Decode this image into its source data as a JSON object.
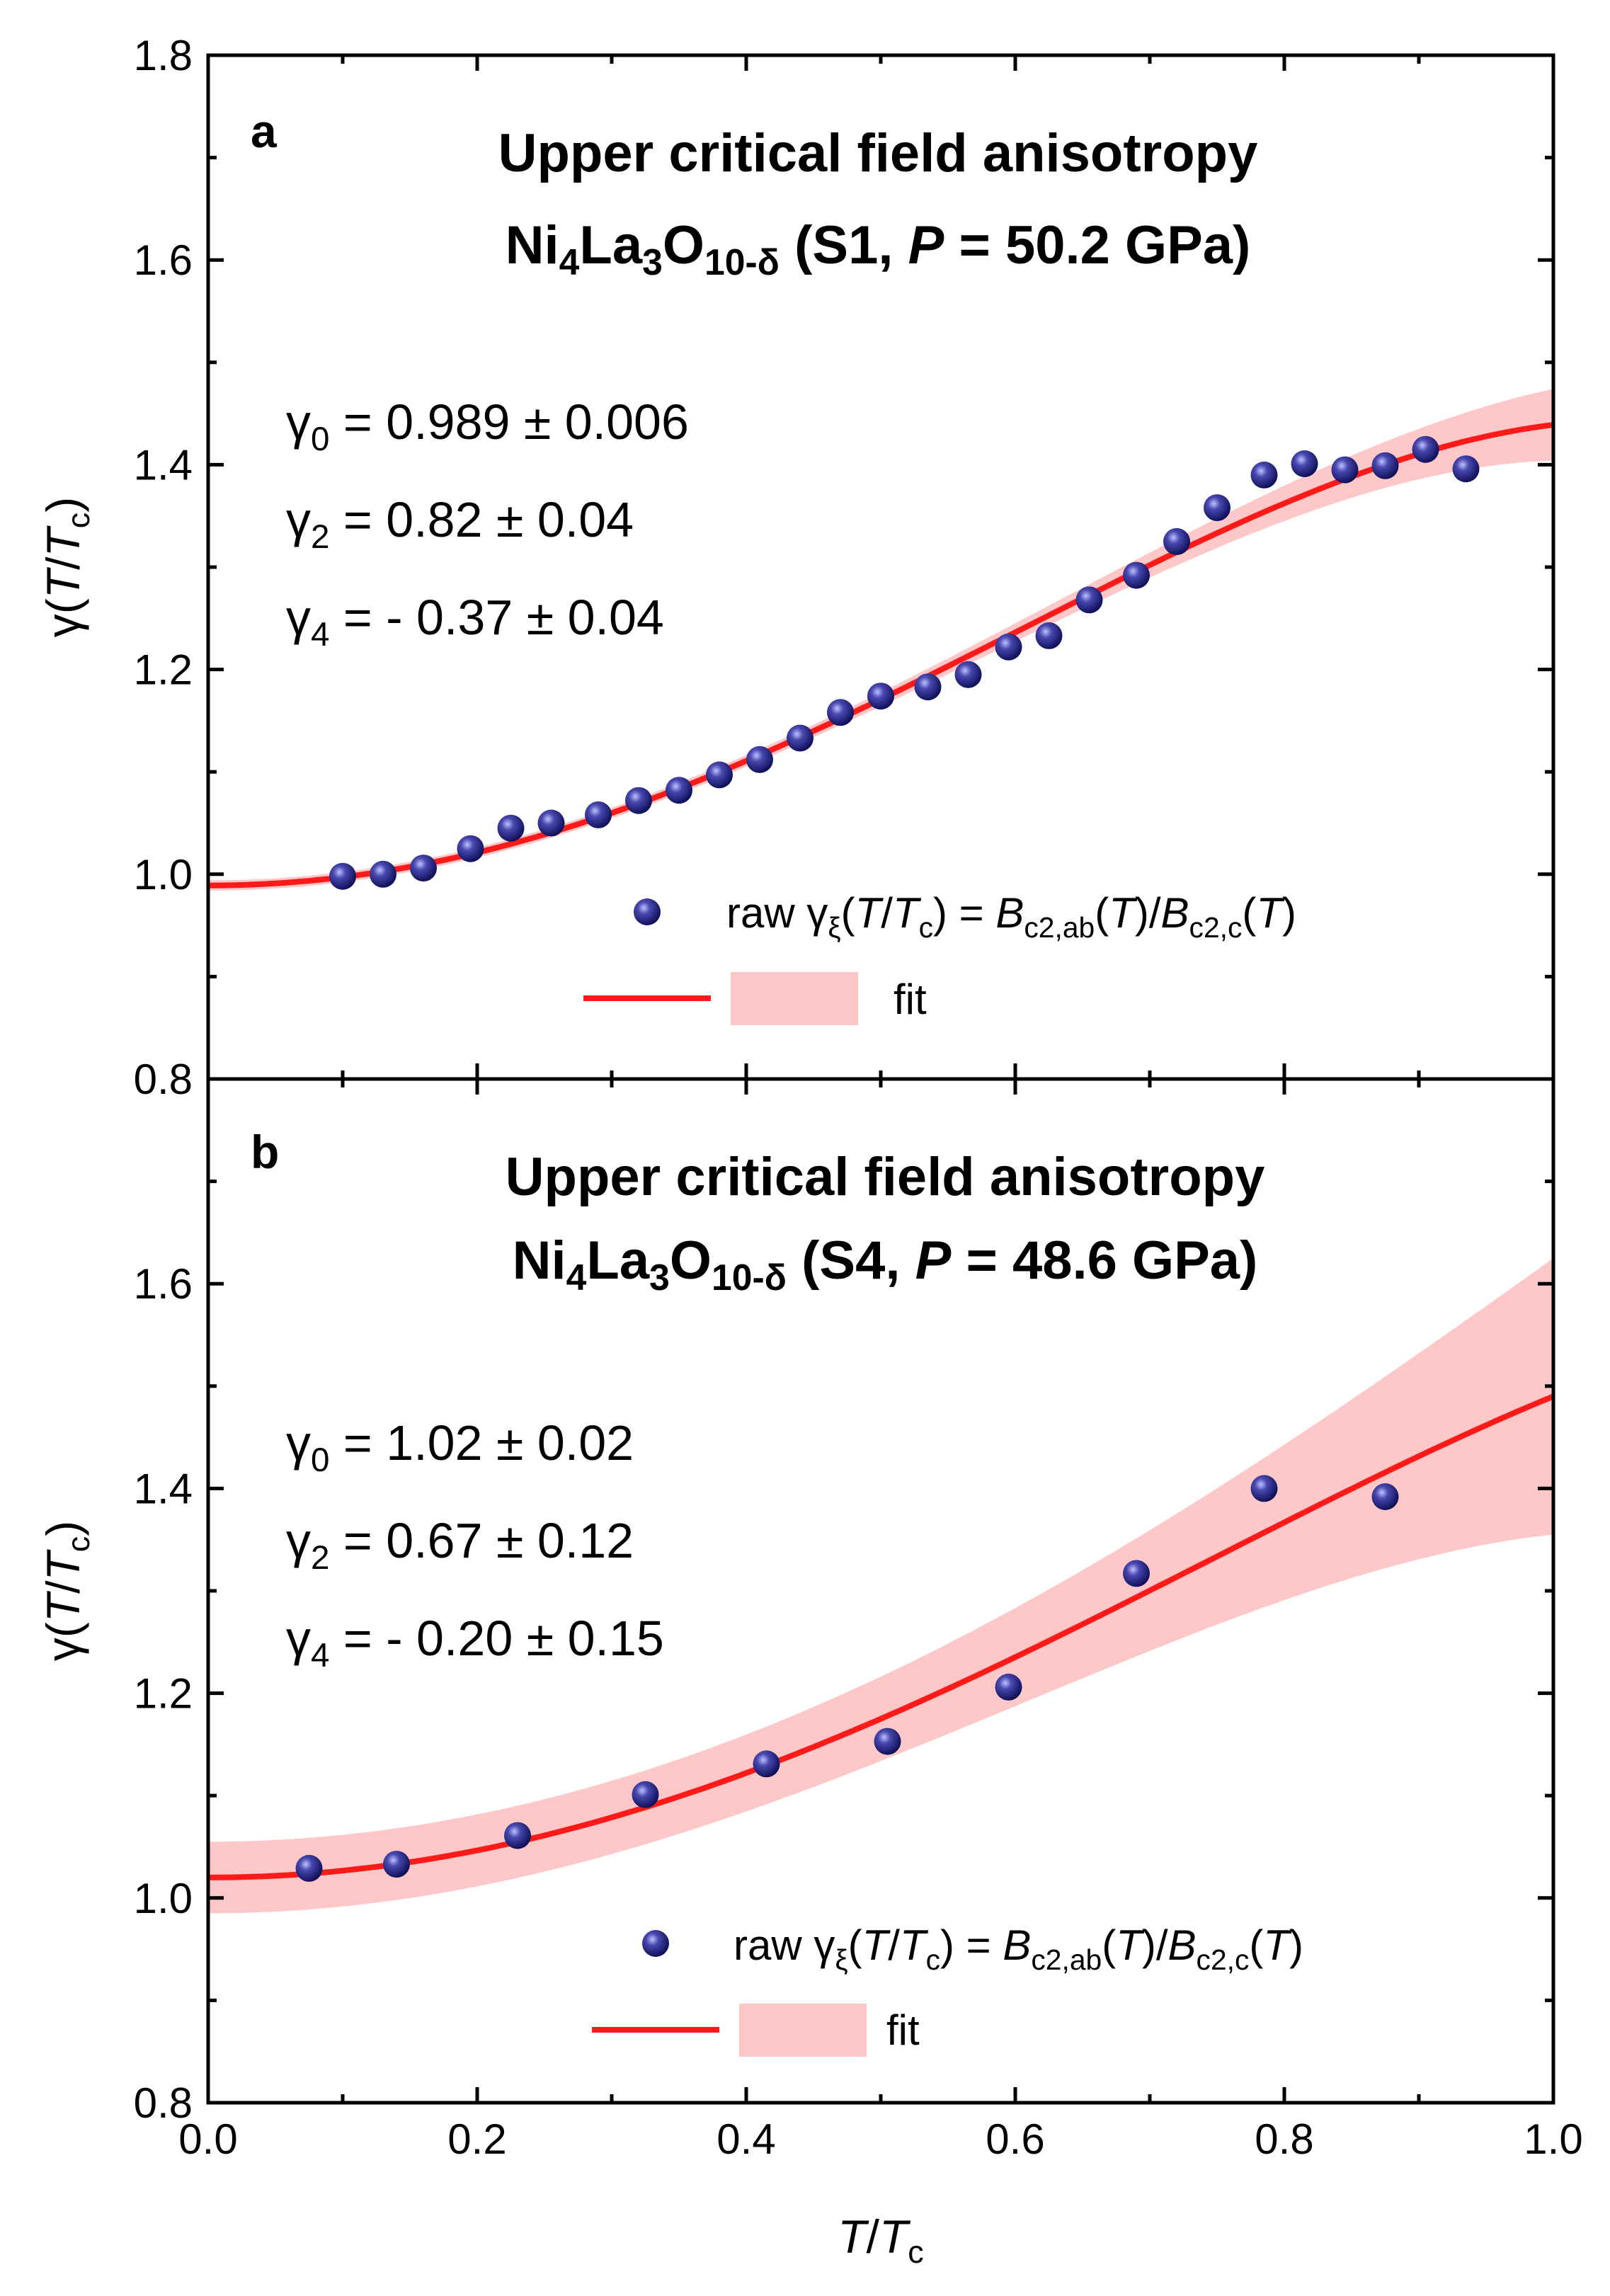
{
  "chart_data": [
    {
      "type": "scatter",
      "panel": "a",
      "title_line1": "Upper critical field anisotropy",
      "title_line2": {
        "ni": "Ni",
        "ni_sub": "4",
        "la": "La",
        "la_sub": "3",
        "o": "O",
        "o_sub": "10-δ",
        "mid": " (S1, ",
        "p": "P",
        "eq": " = 50.2 GPa)"
      },
      "parameters": [
        {
          "sym": "γ",
          "sub": "0",
          "text": " = 0.989 ± 0.006"
        },
        {
          "sym": "γ",
          "sub": "2",
          "text": " = 0.82 ± 0.04"
        },
        {
          "sym": "γ",
          "sub": "4",
          "text": " = - 0.37 ± 0.04"
        }
      ],
      "fit": {
        "g0": 0.989,
        "g2": 0.82,
        "g4": -0.37,
        "band_width": 0.005,
        "band_growth": 0.03
      },
      "xlim": [
        0.0,
        1.0
      ],
      "ylim": [
        0.8,
        1.8
      ],
      "yticks": [
        "0.8",
        "1.0",
        "1.2",
        "1.4",
        "1.6",
        "1.8"
      ],
      "ylabel": {
        "g": "γ(",
        "t1": "T",
        "slash": "/",
        "t2": "T",
        "sub": "c",
        "close": ")"
      },
      "series": [
        {
          "name": "raw",
          "x": [
            0.1,
            0.13,
            0.16,
            0.195,
            0.225,
            0.255,
            0.29,
            0.32,
            0.35,
            0.38,
            0.41,
            0.44,
            0.47,
            0.5,
            0.535,
            0.565,
            0.595,
            0.625,
            0.655,
            0.69,
            0.72,
            0.75,
            0.785,
            0.815,
            0.845,
            0.875,
            0.905,
            0.935
          ],
          "y": [
            0.998,
            1.0,
            1.006,
            1.025,
            1.045,
            1.05,
            1.058,
            1.072,
            1.082,
            1.097,
            1.112,
            1.133,
            1.158,
            1.174,
            1.183,
            1.195,
            1.222,
            1.233,
            1.268,
            1.292,
            1.325,
            1.358,
            1.39,
            1.401,
            1.395,
            1.399,
            1.415,
            1.396
          ]
        }
      ],
      "legend": {
        "raw_prefix": "raw ",
        "gamma_xi": "γ",
        "xi": "ξ",
        "expr_open": "(",
        "t": "T",
        "slash": "/",
        "tc": "T",
        "c": "c",
        "expr_eq": ") = ",
        "b1": "B",
        "b1_sub": "c2,ab",
        "b_paren1": "(",
        "b_t1": "T",
        "b_close1": ")/",
        "b2": "B",
        "b2_sub": "c2,c",
        "b_paren2": "(",
        "b_t2": "T",
        "b_close2": ")",
        "fit": "fit"
      }
    },
    {
      "type": "scatter",
      "panel": "b",
      "title_line1": "Upper critical field anisotropy",
      "title_line2": {
        "ni": "Ni",
        "ni_sub": "4",
        "la": "La",
        "la_sub": "3",
        "o": "O",
        "o_sub": "10-δ",
        "mid": " (S4, ",
        "p": "P",
        "eq": " = 48.6 GPa)"
      },
      "parameters": [
        {
          "sym": "γ",
          "sub": "0",
          "text": " = 1.02 ± 0.02"
        },
        {
          "sym": "γ",
          "sub": "2",
          "text": " = 0.67 ± 0.12"
        },
        {
          "sym": "γ",
          "sub": "4",
          "text": " = - 0.20 ± 0.15"
        }
      ],
      "fit": {
        "g0": 1.02,
        "g2": 0.67,
        "g4": -0.2,
        "band_width": 0.035,
        "band_growth": 0.1
      },
      "xlim": [
        0.0,
        1.0
      ],
      "ylim": [
        0.8,
        1.8
      ],
      "yticks": [
        "0.8",
        "1.0",
        "1.2",
        "1.4",
        "1.6"
      ],
      "xticks": [
        "0.0",
        "0.2",
        "0.4",
        "0.6",
        "0.8",
        "1.0"
      ],
      "xlabel": {
        "t1": "T",
        "slash": "/",
        "t2": "T",
        "sub": "c"
      },
      "ylabel": {
        "g": "γ(",
        "t1": "T",
        "slash": "/",
        "t2": "T",
        "sub": "c",
        "close": ")"
      },
      "series": [
        {
          "name": "raw",
          "x": [
            0.075,
            0.14,
            0.23,
            0.325,
            0.415,
            0.505,
            0.595,
            0.69,
            0.785,
            0.875
          ],
          "y": [
            1.029,
            1.033,
            1.061,
            1.101,
            1.131,
            1.153,
            1.206,
            1.317,
            1.4,
            1.392
          ]
        }
      ],
      "legend": {
        "raw_prefix": "raw ",
        "gamma_xi": "γ",
        "xi": "ξ",
        "expr_open": "(",
        "t": "T",
        "slash": "/",
        "tc": "T",
        "c": "c",
        "expr_eq": ") = ",
        "b1": "B",
        "b1_sub": "c2,ab",
        "b_paren1": "(",
        "b_t1": "T",
        "b_close1": ")/",
        "b2": "B",
        "b2_sub": "c2,c",
        "b_paren2": "(",
        "b_t2": "T",
        "b_close2": ")",
        "fit": "fit"
      }
    }
  ],
  "colors": {
    "marker_fill": "#1c1c7a",
    "marker_highlight": "#9a9ae0",
    "fit_line": "#ff1a1a",
    "fit_band": "#ffc8c8",
    "axis": "#000000"
  }
}
